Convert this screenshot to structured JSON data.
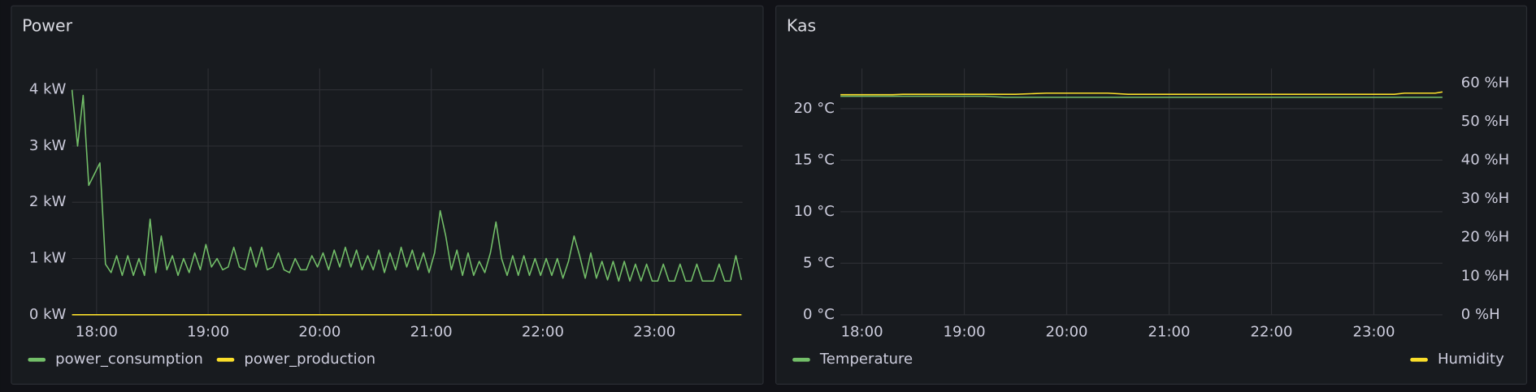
{
  "chart_data": [
    {
      "type": "line",
      "title": "Power",
      "xlim": [
        17.78,
        23.79
      ],
      "xticks": [
        {
          "value": 18,
          "label": "18:00"
        },
        {
          "value": 19,
          "label": "19:00"
        },
        {
          "value": 20,
          "label": "20:00"
        },
        {
          "value": 21,
          "label": "21:00"
        },
        {
          "value": 22,
          "label": "22:00"
        },
        {
          "value": 23,
          "label": "23:00"
        }
      ],
      "ylim": [
        0,
        4.38
      ],
      "yticks": [
        {
          "value": 0,
          "label": "0 kW"
        },
        {
          "value": 1,
          "label": "1 kW"
        },
        {
          "value": 2,
          "label": "2 kW"
        },
        {
          "value": 3,
          "label": "3 kW"
        },
        {
          "value": 4,
          "label": "4 kW"
        }
      ],
      "grid": true,
      "legend": "bottom-left",
      "series": [
        {
          "name": "power_consumption",
          "color": "#73bf69",
          "x": [
            17.78,
            17.83,
            17.88,
            17.93,
            17.98,
            18.03,
            18.08,
            18.13,
            18.18,
            18.23,
            18.28,
            18.33,
            18.38,
            18.43,
            18.48,
            18.53,
            18.58,
            18.63,
            18.68,
            18.73,
            18.78,
            18.83,
            18.88,
            18.93,
            18.98,
            19.03,
            19.08,
            19.13,
            19.18,
            19.23,
            19.28,
            19.33,
            19.38,
            19.43,
            19.48,
            19.53,
            19.58,
            19.63,
            19.68,
            19.73,
            19.78,
            19.83,
            19.88,
            19.93,
            19.98,
            20.03,
            20.08,
            20.13,
            20.18,
            20.23,
            20.28,
            20.33,
            20.38,
            20.43,
            20.48,
            20.53,
            20.58,
            20.63,
            20.68,
            20.73,
            20.78,
            20.83,
            20.88,
            20.93,
            20.98,
            21.03,
            21.08,
            21.13,
            21.18,
            21.23,
            21.28,
            21.33,
            21.38,
            21.43,
            21.48,
            21.53,
            21.58,
            21.63,
            21.68,
            21.73,
            21.78,
            21.83,
            21.88,
            21.93,
            21.98,
            22.03,
            22.08,
            22.13,
            22.18,
            22.23,
            22.28,
            22.33,
            22.38,
            22.43,
            22.48,
            22.53,
            22.58,
            22.63,
            22.68,
            22.73,
            22.78,
            22.83,
            22.88,
            22.93,
            22.98,
            23.03,
            23.08,
            23.13,
            23.18,
            23.23,
            23.28,
            23.33,
            23.38,
            23.43,
            23.48,
            23.53,
            23.58,
            23.63,
            23.68,
            23.73,
            23.78
          ],
          "values": [
            4.0,
            3.0,
            3.9,
            2.3,
            2.5,
            2.7,
            0.9,
            0.75,
            1.05,
            0.7,
            1.05,
            0.7,
            1.0,
            0.7,
            1.7,
            0.75,
            1.4,
            0.8,
            1.05,
            0.7,
            1.0,
            0.75,
            1.1,
            0.8,
            1.25,
            0.85,
            1.0,
            0.8,
            0.85,
            1.2,
            0.85,
            0.8,
            1.2,
            0.85,
            1.2,
            0.8,
            0.85,
            1.1,
            0.8,
            0.75,
            1.0,
            0.8,
            0.8,
            1.05,
            0.85,
            1.1,
            0.8,
            1.15,
            0.85,
            1.2,
            0.85,
            1.15,
            0.8,
            1.05,
            0.8,
            1.15,
            0.75,
            1.1,
            0.8,
            1.2,
            0.85,
            1.15,
            0.8,
            1.1,
            0.75,
            1.1,
            1.85,
            1.4,
            0.8,
            1.15,
            0.7,
            1.1,
            0.7,
            0.95,
            0.75,
            1.1,
            1.65,
            1.0,
            0.7,
            1.05,
            0.7,
            1.05,
            0.7,
            1.0,
            0.7,
            1.0,
            0.7,
            1.0,
            0.65,
            0.95,
            1.4,
            1.05,
            0.65,
            1.1,
            0.65,
            0.95,
            0.62,
            0.95,
            0.6,
            0.95,
            0.6,
            0.9,
            0.6,
            0.9,
            0.6,
            0.6,
            0.9,
            0.6,
            0.6,
            0.9,
            0.6,
            0.6,
            0.9,
            0.6,
            0.6,
            0.6,
            0.9,
            0.6,
            0.6,
            1.05,
            0.62
          ]
        },
        {
          "name": "power_production",
          "color": "#fade2a",
          "x": [
            17.78,
            23.78
          ],
          "values": [
            0,
            0
          ]
        }
      ]
    },
    {
      "type": "line",
      "title": "Kas",
      "xlim": [
        17.79,
        23.67
      ],
      "xticks": [
        {
          "value": 18,
          "label": "18:00"
        },
        {
          "value": 19,
          "label": "19:00"
        },
        {
          "value": 20,
          "label": "20:00"
        },
        {
          "value": 21,
          "label": "21:00"
        },
        {
          "value": 22,
          "label": "22:00"
        },
        {
          "value": 23,
          "label": "23:00"
        }
      ],
      "ylim": [
        0,
        23.9
      ],
      "yticks": [
        {
          "value": 0,
          "label": "0 °C"
        },
        {
          "value": 5,
          "label": "5 °C"
        },
        {
          "value": 10,
          "label": "10 °C"
        },
        {
          "value": 15,
          "label": "15 °C"
        },
        {
          "value": 20,
          "label": "20 °C"
        }
      ],
      "y2lim": [
        0,
        63.8
      ],
      "y2ticks": [
        {
          "value": 0,
          "label": "0 %H"
        },
        {
          "value": 10,
          "label": "10 %H"
        },
        {
          "value": 20,
          "label": "20 %H"
        },
        {
          "value": 30,
          "label": "30 %H"
        },
        {
          "value": 40,
          "label": "40 %H"
        },
        {
          "value": 50,
          "label": "50 %H"
        },
        {
          "value": 60,
          "label": "60 %H"
        }
      ],
      "grid": true,
      "legend": "bottom-left",
      "series": [
        {
          "name": "Temperature",
          "color": "#73bf69",
          "x": [
            17.79,
            18.5,
            19.2,
            19.4,
            23.67
          ],
          "values": [
            21.2,
            21.2,
            21.2,
            21.1,
            21.1
          ]
        },
        {
          "name": "Humidity",
          "color": "#fade2a",
          "axis": "y2",
          "x": [
            17.79,
            18.3,
            18.4,
            19.5,
            19.8,
            20.4,
            20.6,
            23.2,
            23.3,
            23.6,
            23.67
          ],
          "values": [
            57,
            57,
            57.1,
            57.1,
            57.4,
            57.4,
            57.1,
            57.1,
            57.4,
            57.4,
            57.7
          ]
        }
      ]
    }
  ]
}
